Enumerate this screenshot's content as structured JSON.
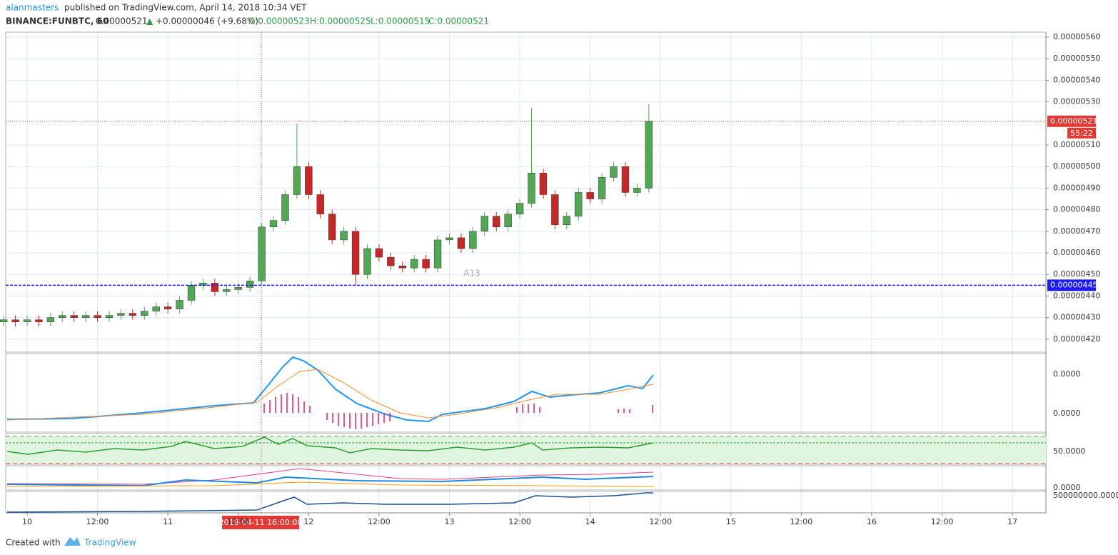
{
  "header": {
    "author": "alanmasters",
    "published": "published on TradingView.com, April 14, 2018 10:34 VET",
    "symbol": "BINANCE:FUNBTC, 60",
    "last": "0.00000521",
    "arrow": "▲",
    "change": "+0.00000046 (+9.68%)",
    "open": "O:0.00000523",
    "high": "H:0.00000525",
    "low": "L:0.00000515",
    "close": "C:0.00000521"
  },
  "chart_data": {
    "type": "candlestick",
    "x": [
      -4,
      -2,
      0,
      2,
      4,
      6,
      8,
      10,
      12,
      14,
      16,
      18,
      20,
      22,
      24,
      26,
      28,
      30,
      32,
      34,
      36,
      38,
      40,
      42,
      44,
      46,
      48,
      50,
      52,
      54,
      56,
      58,
      60,
      62,
      64,
      66,
      68,
      70,
      72,
      74,
      76,
      78,
      80,
      82,
      84,
      86,
      88,
      90,
      92,
      94,
      96,
      98,
      100,
      102,
      104,
      106
    ],
    "open": [
      4.28e-06,
      4.29e-06,
      4.28e-06,
      4.29e-06,
      4.28e-06,
      4.3e-06,
      4.31e-06,
      4.3e-06,
      4.31e-06,
      4.3e-06,
      4.31e-06,
      4.32e-06,
      4.31e-06,
      4.33e-06,
      4.35e-06,
      4.34e-06,
      4.38e-06,
      4.45e-06,
      4.46e-06,
      4.42e-06,
      4.43e-06,
      4.44e-06,
      4.47e-06,
      4.72e-06,
      4.75e-06,
      4.87e-06,
      5e-06,
      4.87e-06,
      4.78e-06,
      4.66e-06,
      4.7e-06,
      4.5e-06,
      4.62e-06,
      4.58e-06,
      4.54e-06,
      4.53e-06,
      4.57e-06,
      4.53e-06,
      4.66e-06,
      4.67e-06,
      4.62e-06,
      4.7e-06,
      4.77e-06,
      4.72e-06,
      4.78e-06,
      4.83e-06,
      4.97e-06,
      4.87e-06,
      4.73e-06,
      4.77e-06,
      4.88e-06,
      4.85e-06,
      4.95e-06,
      5e-06,
      4.88e-06,
      4.9e-06
    ],
    "high": [
      4.31e-06,
      4.31e-06,
      4.31e-06,
      4.31e-06,
      4.32e-06,
      4.33e-06,
      4.33e-06,
      4.33e-06,
      4.33e-06,
      4.33e-06,
      4.34e-06,
      4.34e-06,
      4.35e-06,
      4.37e-06,
      4.37e-06,
      4.4e-06,
      4.47e-06,
      4.48e-06,
      4.48e-06,
      4.45e-06,
      4.46e-06,
      4.49e-06,
      4.74e-06,
      4.77e-06,
      4.89e-06,
      5.2e-06,
      5.02e-06,
      4.89e-06,
      4.8e-06,
      4.72e-06,
      4.72e-06,
      4.64e-06,
      4.64e-06,
      4.6e-06,
      4.56e-06,
      4.59e-06,
      4.59e-06,
      4.68e-06,
      4.69e-06,
      4.69e-06,
      4.72e-06,
      4.79e-06,
      4.79e-06,
      4.8e-06,
      4.85e-06,
      5.27e-06,
      4.99e-06,
      4.89e-06,
      4.79e-06,
      4.9e-06,
      4.9e-06,
      4.97e-06,
      5.02e-06,
      5.02e-06,
      4.92e-06,
      5.29e-06
    ],
    "low": [
      4.26e-06,
      4.26e-06,
      4.26e-06,
      4.26e-06,
      4.26e-06,
      4.28e-06,
      4.28e-06,
      4.28e-06,
      4.28e-06,
      4.28e-06,
      4.29e-06,
      4.29e-06,
      4.29e-06,
      4.31e-06,
      4.32e-06,
      4.32e-06,
      4.36e-06,
      4.43e-06,
      4.4e-06,
      4.4e-06,
      4.41e-06,
      4.42e-06,
      4.45e-06,
      4.7e-06,
      4.73e-06,
      4.85e-06,
      4.85e-06,
      4.76e-06,
      4.64e-06,
      4.64e-06,
      4.45e-06,
      4.48e-06,
      4.56e-06,
      4.52e-06,
      4.51e-06,
      4.51e-06,
      4.51e-06,
      4.51e-06,
      4.64e-06,
      4.6e-06,
      4.6e-06,
      4.68e-06,
      4.7e-06,
      4.7e-06,
      4.76e-06,
      4.81e-06,
      4.85e-06,
      4.71e-06,
      4.71e-06,
      4.75e-06,
      4.83e-06,
      4.83e-06,
      4.93e-06,
      4.86e-06,
      4.86e-06,
      4.88e-06
    ],
    "close": [
      4.29e-06,
      4.28e-06,
      4.29e-06,
      4.28e-06,
      4.3e-06,
      4.31e-06,
      4.3e-06,
      4.31e-06,
      4.3e-06,
      4.31e-06,
      4.32e-06,
      4.31e-06,
      4.33e-06,
      4.35e-06,
      4.34e-06,
      4.38e-06,
      4.45e-06,
      4.46e-06,
      4.42e-06,
      4.43e-06,
      4.44e-06,
      4.47e-06,
      4.72e-06,
      4.75e-06,
      4.87e-06,
      5e-06,
      4.87e-06,
      4.78e-06,
      4.66e-06,
      4.7e-06,
      4.5e-06,
      4.62e-06,
      4.58e-06,
      4.54e-06,
      4.53e-06,
      4.57e-06,
      4.53e-06,
      4.66e-06,
      4.67e-06,
      4.62e-06,
      4.7e-06,
      4.77e-06,
      4.72e-06,
      4.78e-06,
      4.83e-06,
      4.97e-06,
      4.87e-06,
      4.73e-06,
      4.77e-06,
      4.88e-06,
      4.85e-06,
      4.95e-06,
      5e-06,
      4.88e-06,
      4.9e-06,
      5.21e-06
    ],
    "up_color": "#53a653",
    "down_color": "#c62828",
    "xlim": [
      -3.65,
      173.7
    ],
    "xticks": [
      {
        "value": 0,
        "label": "10"
      },
      {
        "value": 12,
        "label": "12:00"
      },
      {
        "value": 24,
        "label": "11"
      },
      {
        "value": 36,
        "label": "12:00"
      },
      {
        "value": 48,
        "label": "12"
      },
      {
        "value": 60,
        "label": "12:00"
      },
      {
        "value": 72,
        "label": "13"
      },
      {
        "value": 84,
        "label": "12:00"
      },
      {
        "value": 96,
        "label": "14"
      },
      {
        "value": 108,
        "label": "12:00"
      },
      {
        "value": 120,
        "label": "15"
      },
      {
        "value": 132,
        "label": "12:00"
      },
      {
        "value": 144,
        "label": "16"
      },
      {
        "value": 156,
        "label": "12:00"
      },
      {
        "value": 168,
        "label": "17"
      }
    ],
    "ylim": [
      4.14e-06,
      5.623e-06
    ],
    "yticks": [
      {
        "value": 4.2e-06,
        "label": "0.00000420"
      },
      {
        "value": 4.3e-06,
        "label": "0.00000430"
      },
      {
        "value": 4.4e-06,
        "label": "0.00000440"
      },
      {
        "value": 4.5e-06,
        "label": "0.00000450"
      },
      {
        "value": 4.6e-06,
        "label": "0.00000460"
      },
      {
        "value": 4.7e-06,
        "label": "0.00000470"
      },
      {
        "value": 4.8e-06,
        "label": "0.00000480"
      },
      {
        "value": 4.9e-06,
        "label": "0.00000490"
      },
      {
        "value": 5e-06,
        "label": "0.00000500"
      },
      {
        "value": 5.1e-06,
        "label": "0.00000510"
      },
      {
        "value": 5.3e-06,
        "label": "0.00000530"
      },
      {
        "value": 5.4e-06,
        "label": "0.00000540"
      },
      {
        "value": 5.5e-06,
        "label": "0.00000550"
      },
      {
        "value": 5.6e-06,
        "label": "0.00000560"
      }
    ],
    "grid": true,
    "price_line": {
      "value": 5.21e-06,
      "label": "0.00000521",
      "timer": "55:22",
      "color": "#e53935"
    },
    "level_line": {
      "value": 4.45e-06,
      "label": "0.00000445",
      "color": "#1a1aff"
    },
    "crosshair_label": "2018-04-11 16:00:00",
    "annotation": "A13"
  },
  "indicators": {
    "macd_high": "0.0000",
    "macd_low": "0.0000",
    "rsi": "50.0000",
    "pane3": "0.0000",
    "pane4": "500000000.0000"
  },
  "footer": {
    "created": "Created with",
    "brand": "TradingView"
  }
}
